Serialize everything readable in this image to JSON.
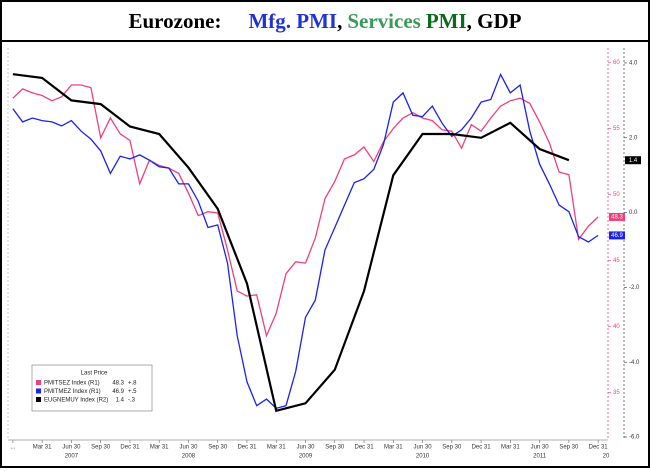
{
  "chart_data": {
    "type": "line",
    "title_parts": [
      {
        "text": "Eurozone:",
        "color": "#000000"
      },
      {
        "text": "Mfg. PMI",
        "color": "#1f33d6"
      },
      {
        "text": ",",
        "color": "#000000"
      },
      {
        "text": "Services",
        "color": "#3a9a5a"
      },
      {
        "text": "PMI",
        "color": "#0b6a1c"
      },
      {
        "text": ", GDP",
        "color": "#000000"
      }
    ],
    "x": [
      "2006-12",
      "2007-01",
      "2007-02",
      "2007-03",
      "2007-04",
      "2007-05",
      "2007-06",
      "2007-07",
      "2007-08",
      "2007-09",
      "2007-10",
      "2007-11",
      "2007-12",
      "2008-01",
      "2008-02",
      "2008-03",
      "2008-04",
      "2008-05",
      "2008-06",
      "2008-07",
      "2008-08",
      "2008-09",
      "2008-10",
      "2008-11",
      "2008-12",
      "2009-01",
      "2009-02",
      "2009-03",
      "2009-04",
      "2009-05",
      "2009-06",
      "2009-07",
      "2009-08",
      "2009-09",
      "2009-10",
      "2009-11",
      "2009-12",
      "2010-01",
      "2010-02",
      "2010-03",
      "2010-04",
      "2010-05",
      "2010-06",
      "2010-07",
      "2010-08",
      "2010-09",
      "2010-10",
      "2010-11",
      "2010-12",
      "2011-01",
      "2011-02",
      "2011-03",
      "2011-04",
      "2011-05",
      "2011-06",
      "2011-07",
      "2011-08",
      "2011-09",
      "2011-10",
      "2011-11",
      "2011-12"
    ],
    "xticks": [
      {
        "value": "2006-12",
        "label": "..."
      },
      {
        "value": "2007-03",
        "label": "Mar 31"
      },
      {
        "value": "2007-06",
        "label": "Jun 30"
      },
      {
        "value": "2007-09",
        "label": "Sep 30"
      },
      {
        "value": "2007-12",
        "label": "Dec 31"
      },
      {
        "value": "2008-03",
        "label": "Mar 31"
      },
      {
        "value": "2008-06",
        "label": "Jun 30"
      },
      {
        "value": "2008-09",
        "label": "Sep 30"
      },
      {
        "value": "2008-12",
        "label": "Dec 31"
      },
      {
        "value": "2009-03",
        "label": "Mar 31"
      },
      {
        "value": "2009-06",
        "label": "Jun 30"
      },
      {
        "value": "2009-09",
        "label": "Sep 30"
      },
      {
        "value": "2009-12",
        "label": "Dec 31"
      },
      {
        "value": "2010-03",
        "label": "Mar 31"
      },
      {
        "value": "2010-06",
        "label": "Jun 30"
      },
      {
        "value": "2010-09",
        "label": "Sep 30"
      },
      {
        "value": "2010-12",
        "label": "Dec 31"
      },
      {
        "value": "2011-03",
        "label": "Mar 31"
      },
      {
        "value": "2011-06",
        "label": "Jun 30"
      },
      {
        "value": "2011-09",
        "label": "Sep 30"
      },
      {
        "value": "2011-12",
        "label": "Dec 31"
      }
    ],
    "xyears": [
      {
        "value": "2007-06",
        "label": "2007"
      },
      {
        "value": "2008-06",
        "label": "2008"
      },
      {
        "value": "2009-06",
        "label": "2009"
      },
      {
        "value": "2010-06",
        "label": "2010"
      },
      {
        "value": "2011-06",
        "label": "2011"
      },
      {
        "value": "2012-06",
        "label": "20"
      }
    ],
    "ylim": [
      31.4,
      61.1
    ],
    "yticks": [
      35,
      40,
      45,
      50,
      55,
      60
    ],
    "y_color": "#f0407a",
    "y2lim": [
      -6.08,
      4.4
    ],
    "y2ticks": [
      {
        "value": 4,
        "label": "4.0"
      },
      {
        "value": 2,
        "label": "2.0"
      },
      {
        "value": 0,
        "label": "0.0"
      },
      {
        "value": -2,
        "label": "-2.0"
      },
      {
        "value": -4,
        "label": "-4.0"
      },
      {
        "value": -6,
        "label": "-6.0"
      }
    ],
    "legend_title": "Last Price",
    "series": [
      {
        "name": "PMITSEZ Index (R1)",
        "color": "#f0407a",
        "change_label": "+.8",
        "values": [
          57.3,
          58.0,
          57.7,
          57.5,
          57.1,
          57.4,
          58.3,
          58.3,
          58.1,
          54.3,
          55.8,
          54.6,
          54.1,
          50.8,
          52.6,
          52.2,
          52.0,
          51.6,
          50.1,
          48.4,
          48.7,
          48.6,
          45.8,
          42.7,
          42.3,
          42.4,
          39.3,
          41.0,
          44.0,
          44.9,
          44.8,
          46.7,
          49.7,
          51.0,
          52.7,
          53.0,
          53.6,
          52.5,
          54.0,
          55.0,
          55.8,
          56.2,
          55.8,
          55.6,
          54.9,
          54.8,
          53.5,
          55.3,
          54.8,
          55.8,
          56.7,
          57.1,
          57.3,
          56.9,
          55.5,
          53.9,
          51.7,
          51.5,
          46.6,
          47.6,
          48.3
        ]
      },
      {
        "name": "PMITMEZ Index (R1)",
        "color": "#1a22ee",
        "change_label": "+.5",
        "values": [
          56.5,
          55.5,
          55.8,
          55.6,
          55.5,
          55.2,
          55.6,
          54.8,
          54.2,
          53.3,
          51.6,
          52.9,
          52.7,
          53.0,
          52.6,
          52.1,
          52.0,
          50.8,
          50.8,
          49.5,
          47.5,
          47.7,
          44.8,
          39.3,
          35.8,
          34.0,
          34.5,
          33.8,
          34.0,
          36.6,
          40.7,
          42.0,
          45.8,
          47.5,
          49.2,
          50.9,
          51.2,
          51.9,
          53.8,
          57.0,
          57.7,
          56.0,
          55.9,
          56.7,
          55.4,
          54.4,
          54.9,
          55.8,
          57.0,
          57.2,
          59.1,
          57.7,
          58.3,
          54.8,
          52.3,
          50.8,
          49.2,
          48.7,
          46.8,
          46.4,
          46.9
        ]
      },
      {
        "name": "EUGNEMUY Index (R2)",
        "color": "#000000",
        "change_label": "-.3",
        "axis": "y2",
        "x": [
          "2006-12",
          "2007-03",
          "2007-06",
          "2007-09",
          "2007-12",
          "2008-03",
          "2008-06",
          "2008-09",
          "2008-12",
          "2009-03",
          "2009-06",
          "2009-09",
          "2009-12",
          "2010-03",
          "2010-06",
          "2010-09",
          "2010-12",
          "2011-03",
          "2011-06",
          "2011-09"
        ],
        "values": [
          3.7,
          3.6,
          3.0,
          2.9,
          2.3,
          2.1,
          1.2,
          0.1,
          -1.9,
          -5.3,
          -5.1,
          -4.2,
          -2.1,
          1.0,
          2.1,
          2.1,
          2.0,
          2.4,
          1.7,
          1.4
        ]
      }
    ]
  }
}
